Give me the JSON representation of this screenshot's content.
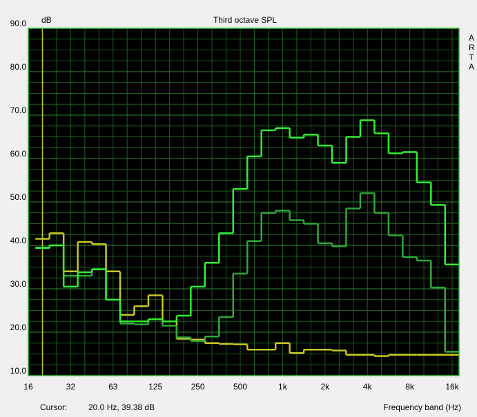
{
  "chart_data": {
    "type": "step",
    "title": "Third octave SPL",
    "y_label": "dB",
    "x_label": "Frequency band (Hz)",
    "brand": "ARTA",
    "cursor_label": "Cursor:",
    "cursor_readout": "20.0 Hz, 39.38 dB",
    "categories": [
      "16",
      null,
      null,
      "32",
      null,
      null,
      "63",
      null,
      null,
      "125",
      null,
      null,
      "250",
      null,
      null,
      "500",
      null,
      null,
      "1k",
      null,
      null,
      "2k",
      null,
      null,
      "4k",
      null,
      null,
      "8k",
      null,
      null,
      "16k"
    ],
    "ylim": [
      10,
      90
    ],
    "yticks": [
      {
        "value": 10,
        "label": "10.0"
      },
      {
        "value": 20,
        "label": "20.0"
      },
      {
        "value": 30,
        "label": "30.0"
      },
      {
        "value": 40,
        "label": "40.0"
      },
      {
        "value": 50,
        "label": "50.0"
      },
      {
        "value": 60,
        "label": "60.0"
      },
      {
        "value": 70,
        "label": "70.0"
      },
      {
        "value": 80,
        "label": "80.0"
      },
      {
        "value": 90,
        "label": "90.0"
      }
    ],
    "grid": true,
    "background": "#000000",
    "grid_color": "#1d5e1d",
    "cursor_color": "#c8c820",
    "series": [
      {
        "color": "#33ee33",
        "values": [
          null,
          39.4,
          40,
          30.5,
          33.8,
          34.5,
          27.5,
          22.5,
          22.5,
          23,
          22.5,
          23.8,
          30.5,
          36,
          42.8,
          53,
          60.5,
          66.5,
          67,
          64.8,
          65.5,
          63,
          59,
          65,
          68.8,
          65.8,
          61.2,
          61.5,
          54.5,
          49.3,
          35.6
        ]
      },
      {
        "color": "#2ea83a",
        "values": [
          null,
          39.5,
          40,
          33,
          33,
          34.5,
          27.5,
          22,
          21.8,
          23,
          21.5,
          18.8,
          18,
          19,
          23.5,
          33.5,
          41,
          47.5,
          48,
          45.8,
          45,
          40.5,
          39.8,
          48.5,
          52,
          47.5,
          42.3,
          37.3,
          36.5,
          30.3,
          15.5
        ]
      },
      {
        "color": "#c8c820",
        "values": [
          null,
          41.5,
          42.8,
          34,
          40.8,
          40.3,
          34,
          24,
          26,
          28.5,
          22.5,
          18.5,
          18.3,
          17.5,
          17.3,
          17.2,
          16,
          16,
          17.5,
          15.2,
          16,
          16,
          15.8,
          14.8,
          14.8,
          14.5,
          14.8,
          14.8,
          14.8,
          14.8,
          14.8
        ]
      }
    ]
  }
}
